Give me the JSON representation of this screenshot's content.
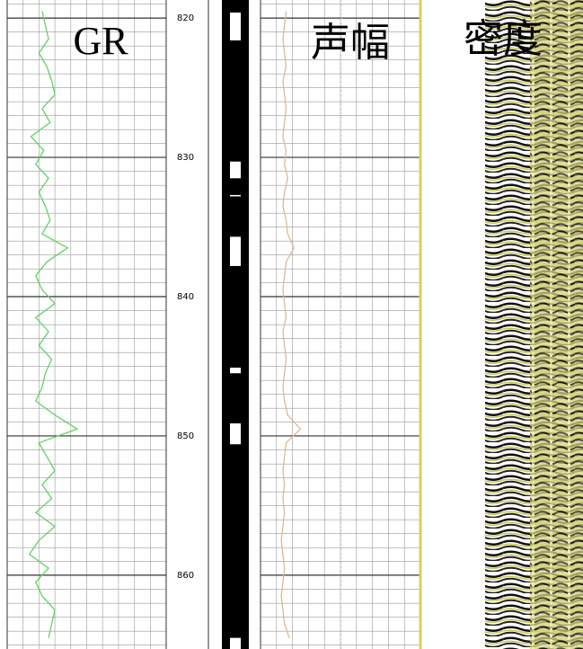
{
  "chart_data": {
    "type": "well-log",
    "tracks": {
      "gr": "GR",
      "amplitude": "声幅",
      "density": "密度"
    },
    "ylim": [
      818.7,
      865.3
    ],
    "yticks": [
      820,
      830,
      840,
      850,
      860
    ],
    "xlim": [
      0,
      100
    ],
    "x": [
      819.5,
      820.5,
      821.5,
      822.5,
      823.5,
      824.5,
      825.5,
      826.5,
      827.5,
      828.5,
      829.5,
      830.5,
      831.5,
      832.5,
      833.5,
      834.5,
      835.5,
      836.5,
      837.5,
      838.5,
      839.5,
      840.5,
      841.5,
      842.5,
      843.5,
      844.5,
      845.5,
      846.5,
      847.5,
      848.5,
      849.5,
      850.5,
      851.5,
      852.5,
      853.5,
      854.5,
      855.5,
      856.5,
      857.5,
      858.5,
      859.5,
      860.5,
      861.5,
      862.5,
      863.5,
      864.5
    ],
    "series": [
      {
        "name": "GR",
        "color": "#5fd35f",
        "values": [
          22,
          24,
          26,
          20,
          25,
          28,
          30,
          22,
          27,
          15,
          23,
          18,
          26,
          20,
          24,
          27,
          22,
          38,
          25,
          18,
          22,
          30,
          18,
          26,
          20,
          28,
          24,
          22,
          18,
          30,
          44,
          20,
          25,
          30,
          22,
          28,
          18,
          30,
          20,
          14,
          26,
          18,
          22,
          30,
          28,
          26
        ]
      },
      {
        "name": "声幅",
        "color": "#e0b890",
        "values": [
          16,
          15,
          14,
          15,
          16,
          14,
          15,
          16,
          15,
          14,
          16,
          15,
          17,
          15,
          14,
          16,
          17,
          21,
          16,
          15,
          14,
          15,
          16,
          14,
          15,
          16,
          15,
          14,
          15,
          17,
          25,
          16,
          15,
          14,
          15,
          14,
          15,
          14,
          13,
          14,
          15,
          14,
          13,
          14,
          15,
          18
        ]
      }
    ],
    "lithology": {
      "color": "#000000",
      "white_intervals": [
        [
          819.6,
          821.6
        ],
        [
          830.3,
          831.5
        ],
        [
          832.7,
          832.8
        ],
        [
          835.7,
          837.8
        ],
        [
          845.1,
          845.5
        ],
        [
          849.1,
          850.6
        ],
        [
          864.5,
          865.3
        ]
      ]
    }
  }
}
